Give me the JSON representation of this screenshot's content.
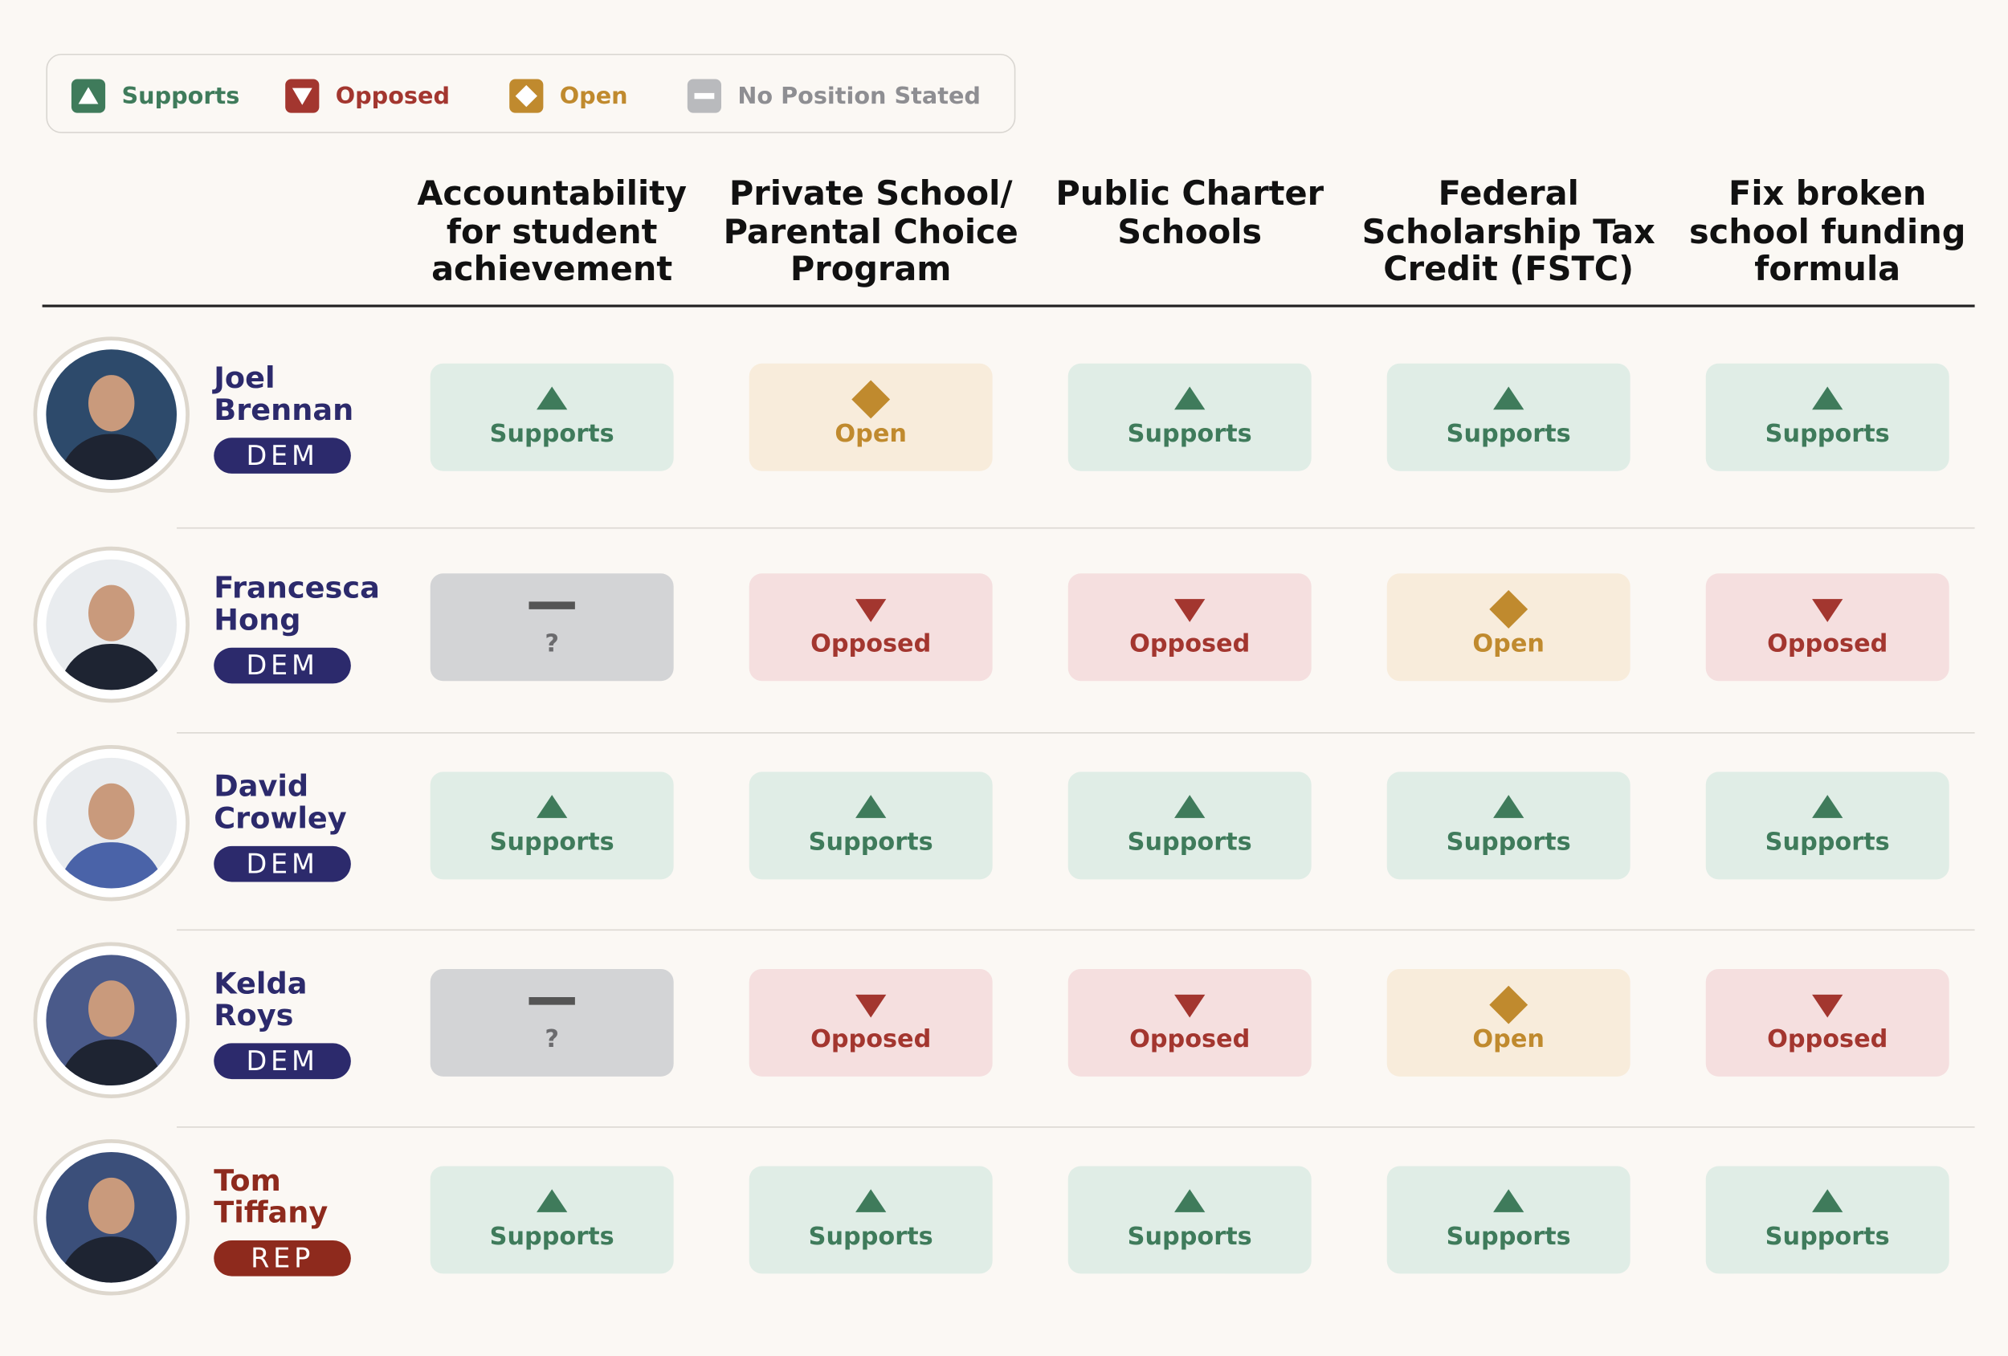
{
  "legend": [
    {
      "label": "Supports",
      "icon": "up",
      "color": "#3f7b5b",
      "bg": "#e0ede6"
    },
    {
      "label": "Opposed",
      "icon": "down",
      "color": "#a3362f",
      "bg": "#f5dfdf"
    },
    {
      "label": "Open",
      "icon": "diamond",
      "color": "#c08a2e",
      "bg": "#f8ecdb"
    },
    {
      "label": "No Position Stated",
      "icon": "dash",
      "color": "#6b6b6e",
      "bg": "#d3d4d6"
    }
  ],
  "columns": [
    "Accountability for student achievement",
    "Private School/ Parental Choice Program",
    "Public Charter Schools",
    "Federal Scholarship Tax Credit (FSTC)",
    "Fix broken school funding formula"
  ],
  "rows": [
    {
      "name": "Joel Brennan",
      "party": "DEM",
      "color": "#2c2a6c",
      "cells": [
        "Supports",
        "Open",
        "Supports",
        "Supports",
        "Supports"
      ]
    },
    {
      "name": "Francesca Hong",
      "party": "DEM",
      "color": "#2c2a6c",
      "cells": [
        "?",
        "Opposed",
        "Opposed",
        "Open",
        "Opposed"
      ]
    },
    {
      "name": "David Crowley",
      "party": "DEM",
      "color": "#2c2a6c",
      "cells": [
        "Supports",
        "Supports",
        "Supports",
        "Supports",
        "Supports"
      ]
    },
    {
      "name": "Kelda Roys",
      "party": "DEM",
      "color": "#2c2a6c",
      "cells": [
        "?",
        "Opposed",
        "Opposed",
        "Open",
        "Opposed"
      ]
    },
    {
      "name": "Tom Tiffany",
      "party": "REP",
      "color": "#8e2a1d",
      "cells": [
        "Supports",
        "Supports",
        "Supports",
        "Supports",
        "Supports"
      ]
    }
  ]
}
